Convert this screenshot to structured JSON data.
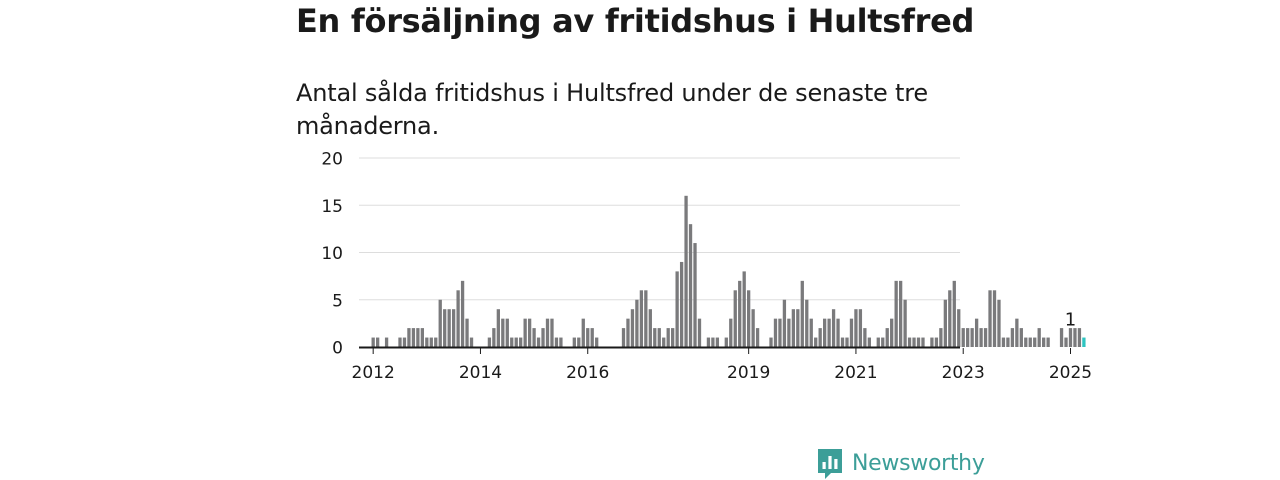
{
  "title": "En försäljning av fritidshus i Hultsfred",
  "subtitle": "Antal sålda fritidshus i Hultsfred under de senaste tre månaderna.",
  "brand": {
    "name": "Newsworthy",
    "icon": "newsworthy-logo-icon",
    "color": "#3c9e98"
  },
  "colors": {
    "bar": "#7a7a7c",
    "highlight": "#2ec4c0",
    "grid": "#dddddd",
    "axis": "#1a1a1a"
  },
  "chart_data": {
    "type": "bar",
    "xlabel": "",
    "ylabel": "",
    "ylim": [
      0,
      20
    ],
    "yticks": [
      0,
      5,
      10,
      15,
      20
    ],
    "grid": true,
    "x_start": "2011-11",
    "x_end": "2025-01",
    "x_tick_labels": [
      {
        "label": "2012",
        "at": "2012-01"
      },
      {
        "label": "2014",
        "at": "2014-01"
      },
      {
        "label": "2016",
        "at": "2016-01"
      },
      {
        "label": "2019",
        "at": "2019-01"
      },
      {
        "label": "2021",
        "at": "2021-01"
      },
      {
        "label": "2023",
        "at": "2023-01"
      },
      {
        "label": "2025",
        "at": "2025-01"
      }
    ],
    "values": [
      0,
      0,
      1,
      1,
      0,
      1,
      0,
      0,
      1,
      1,
      2,
      2,
      2,
      2,
      1,
      1,
      1,
      5,
      4,
      4,
      4,
      6,
      7,
      3,
      1,
      0,
      0,
      0,
      1,
      2,
      4,
      3,
      3,
      1,
      1,
      1,
      3,
      3,
      2,
      1,
      2,
      3,
      3,
      1,
      1,
      0,
      0,
      1,
      1,
      3,
      2,
      2,
      1,
      0,
      0,
      0,
      0,
      0,
      2,
      3,
      4,
      5,
      6,
      6,
      4,
      2,
      2,
      1,
      2,
      2,
      8,
      9,
      16,
      13,
      11,
      3,
      0,
      1,
      1,
      1,
      0,
      1,
      3,
      6,
      7,
      8,
      6,
      4,
      2,
      0,
      0,
      1,
      3,
      3,
      5,
      3,
      4,
      4,
      7,
      5,
      3,
      1,
      2,
      3,
      3,
      4,
      3,
      1,
      1,
      3,
      4,
      4,
      2,
      1,
      0,
      1,
      1,
      2,
      3,
      7,
      7,
      5,
      1,
      1,
      1,
      1,
      0,
      1,
      1,
      2,
      5,
      6,
      7,
      4,
      2,
      2,
      2,
      3,
      2,
      2,
      6,
      6,
      5,
      1,
      1,
      2,
      3,
      2,
      1,
      1,
      1,
      2,
      1,
      1,
      0,
      0,
      2,
      1,
      2,
      2,
      2,
      1
    ],
    "annotation": {
      "label": "1",
      "value": 1,
      "at": "2025-01"
    }
  }
}
